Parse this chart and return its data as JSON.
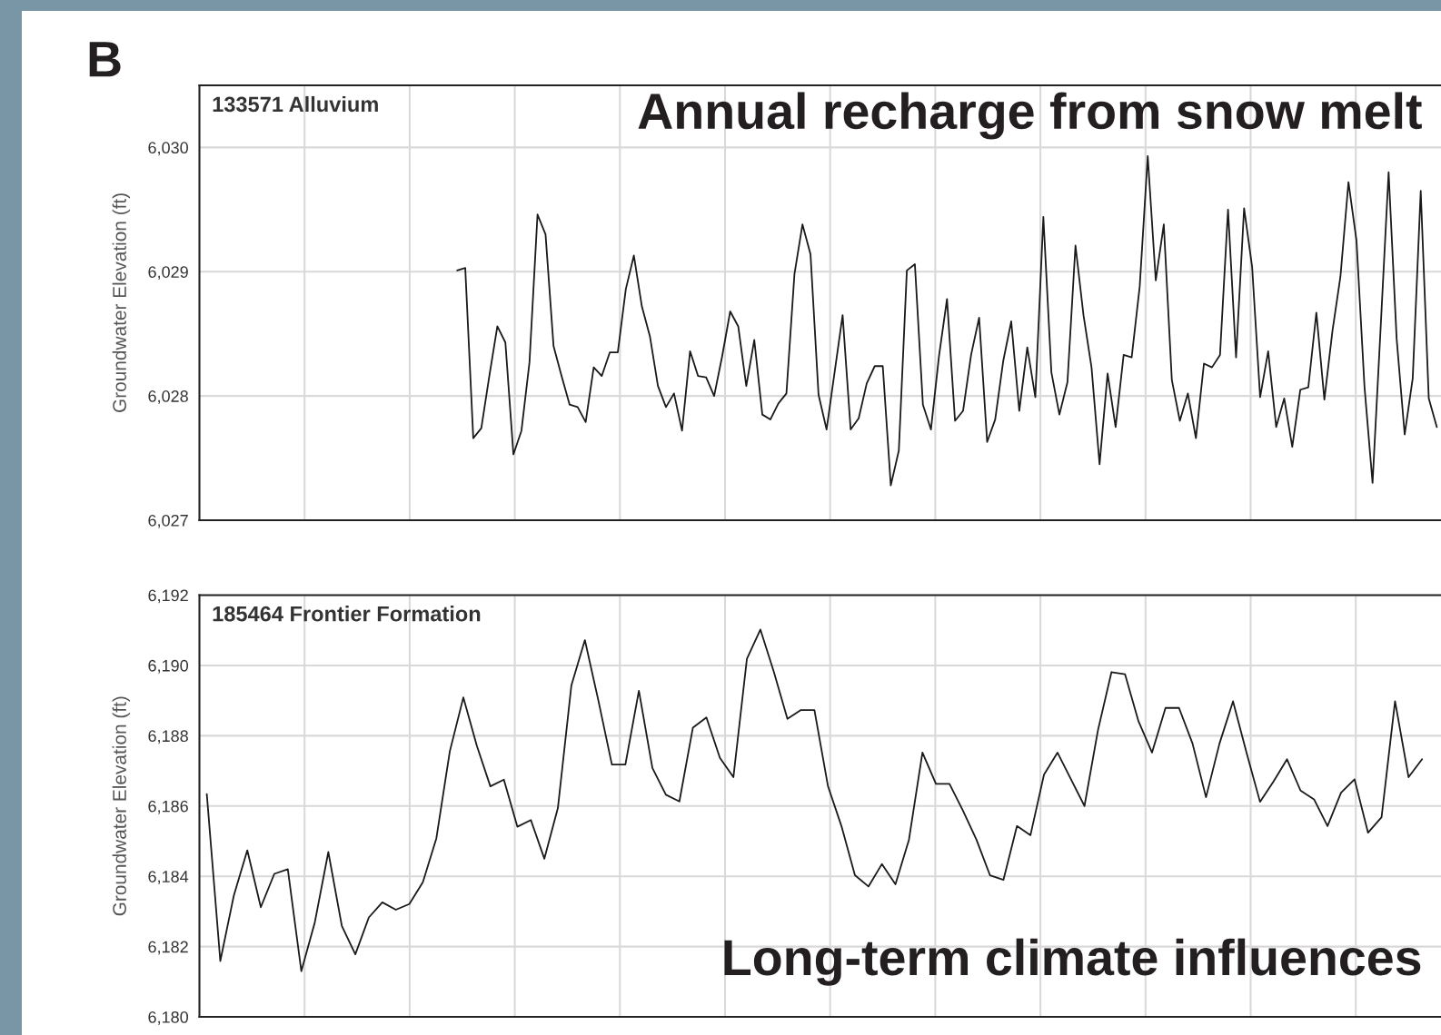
{
  "chart_data": [
    {
      "type": "line",
      "title": "133571 Alluvium",
      "ylabel": "Groundwater Elevation (ft)",
      "annotations": [
        "B",
        "Annual recharge from snow melt"
      ],
      "grid": true,
      "line_style": "solid",
      "tick_labels": "y",
      "categories": [
        null,
        null,
        null,
        null,
        null,
        null,
        null,
        null,
        null,
        null,
        null,
        null,
        null,
        null,
        null,
        null,
        null,
        null,
        null,
        null,
        null,
        null,
        null,
        null,
        null,
        null,
        null,
        null,
        null,
        null,
        null,
        null,
        null,
        null,
        null,
        null,
        null,
        null,
        null,
        null,
        null,
        null,
        null,
        null,
        null,
        null,
        null,
        null,
        null,
        null,
        null,
        null,
        null,
        null,
        null,
        null,
        null,
        null,
        null,
        null,
        null,
        null,
        null,
        null,
        null,
        null,
        null,
        null,
        null,
        null,
        null,
        null,
        null,
        null,
        null,
        null,
        null,
        null,
        null,
        null,
        null,
        null,
        null,
        null,
        null,
        null,
        null,
        null,
        null,
        null,
        null,
        null,
        null,
        null,
        null,
        null,
        null,
        null,
        null,
        null,
        null,
        null,
        null,
        null,
        null,
        null,
        null,
        null,
        null,
        null,
        null,
        null,
        null,
        null,
        null,
        null,
        null,
        null,
        null,
        null,
        null,
        null,
        null
      ],
      "ylim": [
        6027,
        6030.5
      ],
      "yticks": [
        {
          "value": 6027,
          "label": "6,027"
        },
        {
          "value": 6028,
          "label": "6,028"
        },
        {
          "value": 6029,
          "label": "6,029"
        },
        {
          "value": 6030,
          "label": "6,030"
        }
      ],
      "series": [
        {
          "color": "#1a1a1a",
          "values": [
            6029.01,
            6029.03,
            6027.66,
            6027.74,
            6028.16,
            6028.56,
            6028.43,
            6027.53,
            6027.72,
            6028.27,
            6029.46,
            6029.3,
            6028.4,
            6028.16,
            6027.93,
            6027.91,
            6027.79,
            6028.23,
            6028.16,
            6028.35,
            6028.35,
            6028.86,
            6029.13,
            6028.72,
            6028.48,
            6028.08,
            6027.91,
            6028.02,
            6027.72,
            6028.36,
            6028.16,
            6028.15,
            6028.0,
            6028.32,
            6028.68,
            6028.56,
            6028.08,
            6028.45,
            6027.85,
            6027.81,
            6027.94,
            6028.02,
            6028.98,
            6029.38,
            6029.14,
            6028.01,
            6027.73,
            6028.19,
            6028.65,
            6027.73,
            6027.82,
            6028.1,
            6028.24,
            6028.24,
            6027.28,
            6027.56,
            6029.01,
            6029.06,
            6027.93,
            6027.73,
            6028.32,
            6028.78,
            6027.8,
            6027.88,
            6028.33,
            6028.63,
            6027.63,
            6027.81,
            6028.28,
            6028.6,
            6027.88,
            6028.39,
            6027.99,
            6029.44,
            6028.19,
            6027.85,
            6028.11,
            6029.21,
            6028.65,
            6028.23,
            6027.45,
            6028.18,
            6027.75,
            6028.33,
            6028.31,
            6028.88,
            6029.93,
            6028.93,
            6029.38,
            6028.13,
            6027.8,
            6028.02,
            6027.66,
            6028.26,
            6028.23,
            6028.33,
            6029.5,
            6028.31,
            6029.51,
            6029.04,
            6027.99,
            6028.36,
            6027.75,
            6027.98,
            6027.59,
            6028.05,
            6028.07,
            6028.67,
            6027.97,
            6028.52,
            6028.96,
            6029.72,
            6029.25,
            6028.07,
            6027.3,
            6028.54,
            6029.8,
            6028.46,
            6027.69,
            6028.14,
            6029.65,
            6027.98,
            6027.75
          ]
        }
      ]
    },
    {
      "type": "line",
      "title": "185464 Frontier Formation",
      "ylabel": "Groundwater Elevation (ft)",
      "annotations": [
        "Long-term climate influences"
      ],
      "grid": true,
      "line_style": "solid",
      "tick_labels": "y",
      "categories": [
        null,
        null,
        null,
        null,
        null,
        null,
        null,
        null,
        null,
        null,
        null,
        null,
        null,
        null,
        null,
        null,
        null,
        null,
        null,
        null,
        null,
        null,
        null,
        null,
        null,
        null,
        null,
        null,
        null,
        null,
        null,
        null,
        null,
        null,
        null,
        null,
        null,
        null,
        null,
        null,
        null,
        null,
        null,
        null,
        null,
        null,
        null,
        null,
        null,
        null,
        null,
        null,
        null,
        null,
        null,
        null,
        null,
        null,
        null,
        null,
        null,
        null,
        null,
        null,
        null,
        null,
        null,
        null,
        null,
        null,
        null,
        null,
        null,
        null,
        null,
        null,
        null,
        null,
        null,
        null,
        null,
        null,
        null,
        null,
        null,
        null,
        null,
        null,
        null,
        null,
        null
      ],
      "ylim": [
        6180,
        6192
      ],
      "yticks": [
        {
          "value": 6180,
          "label": "6,180"
        },
        {
          "value": 6182,
          "label": "6,182"
        },
        {
          "value": 6184,
          "label": "6,184"
        },
        {
          "value": 6186,
          "label": "6,186"
        },
        {
          "value": 6188,
          "label": "6,188"
        },
        {
          "value": 6190,
          "label": "6,190"
        },
        {
          "value": 6192,
          "label": "6,192"
        }
      ],
      "series": [
        {
          "color": "#1a1a1a",
          "values": [
            6186.34,
            6181.59,
            6183.45,
            6184.74,
            6183.12,
            6184.07,
            6184.2,
            6181.3,
            6182.69,
            6184.69,
            6182.59,
            6181.78,
            6182.83,
            6183.26,
            6183.05,
            6183.21,
            6183.83,
            6185.08,
            6187.56,
            6189.09,
            6187.71,
            6186.56,
            6186.75,
            6185.41,
            6185.6,
            6184.5,
            6185.94,
            6189.43,
            6190.72,
            6189.0,
            6187.18,
            6187.18,
            6189.28,
            6187.08,
            6186.32,
            6186.13,
            6188.23,
            6188.52,
            6187.37,
            6186.82,
            6190.19,
            6191.02,
            6189.81,
            6188.48,
            6188.73,
            6188.73,
            6186.57,
            6185.43,
            6184.03,
            6183.71,
            6184.35,
            6183.77,
            6185.04,
            6187.52,
            6186.63,
            6186.63,
            6185.87,
            6185.04,
            6184.03,
            6183.9,
            6185.43,
            6185.17,
            6186.89,
            6187.52,
            6186.76,
            6186.0,
            6188.16,
            6189.81,
            6189.75,
            6188.41,
            6187.52,
            6188.79,
            6188.79,
            6187.78,
            6186.25,
            6187.78,
            6188.98,
            6187.52,
            6186.12,
            6186.7,
            6187.33,
            6186.44,
            6186.19,
            6185.43,
            6186.38,
            6186.76,
            6185.24,
            6185.68,
            6188.98,
            6186.82,
            6187.33
          ]
        }
      ]
    }
  ]
}
